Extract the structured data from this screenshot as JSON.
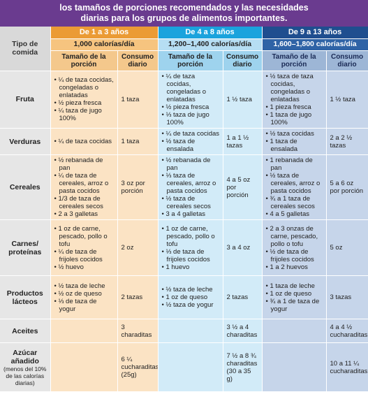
{
  "title": {
    "line1": "los tamaños de porciones recomendados y las necesidades",
    "line2": "diarias para los grupos de alimentos importantes."
  },
  "header": {
    "tipo": "Tipo de comida",
    "groups": [
      {
        "age": "De 1 a 3 años",
        "calories": "1,000 calorías/día",
        "col_portion": "Tamaño de la porción",
        "col_daily": "Consumo diario"
      },
      {
        "age": "De 4 a 8 años",
        "calories": "1,200–1,400 calorías/día",
        "col_portion": "Tamaño de la porción",
        "col_daily": "Consumo diario"
      },
      {
        "age": "De 9 a 13 años",
        "calories": "1,600–1,800 calorías/día",
        "col_portion": "Tamaño de la porción",
        "col_daily": "Consumo diario"
      }
    ]
  },
  "rows": [
    {
      "food": "Fruta",
      "g1": {
        "portion": [
          "¼ de taza cocidas, congeladas o enlatadas",
          "½ pieza fresca",
          "¼ taza de jugo 100%"
        ],
        "daily": "1 taza"
      },
      "g2": {
        "portion": [
          "¼ de taza cocidas, congeladas o enlatadas",
          "½ pieza fresca",
          "⅓ taza de jugo 100%"
        ],
        "daily": "1 ½ taza"
      },
      "g3": {
        "portion": [
          "½ taza de taza cocidas, congeladas o enlatadas",
          "1 pieza fresca",
          "1 taza de jugo 100%"
        ],
        "daily": "1 ½ taza"
      }
    },
    {
      "food": "Verduras",
      "g1": {
        "portion": [
          "¼ de taza cocidas"
        ],
        "daily": "1 taza"
      },
      "g2": {
        "portion": [
          "¼ de taza cocidas",
          "½ taza de ensalada"
        ],
        "daily": "1 a 1 ½ tazas"
      },
      "g3": {
        "portion": [
          "½ taza cocidas",
          "1 taza de ensalada"
        ],
        "daily": "2 a 2 ½ tazas"
      }
    },
    {
      "food": "Cereales",
      "g1": {
        "portion": [
          "½ rebanada de pan",
          "¼ de taza de cereales, arroz o pasta cocidos",
          "1/3 de taza de cereales secos",
          "2 a 3 galletas"
        ],
        "daily": "3 oz por porción"
      },
      "g2": {
        "portion": [
          "½ rebanada de pan",
          "⅓ taza de cereales, arroz o pasta cocidos",
          "½ taza de cereales secos",
          "3 a 4 galletas"
        ],
        "daily": "4 a 5 oz por porción"
      },
      "g3": {
        "portion": [
          "1 rebanada de pan",
          "½ taza de cereales, arroz o pasta cocidos",
          "¾ a 1 taza de cereales secos",
          "4 a 5 galletas"
        ],
        "daily": "5 a 6 oz por porción"
      }
    },
    {
      "food": "Carnes/ proteínas",
      "g1": {
        "portion": [
          "1 oz de carne, pescado, pollo o tofu",
          "¼ de taza de frijoles cocidos",
          "½ huevo"
        ],
        "daily": "2 oz"
      },
      "g2": {
        "portion": [
          "1 oz de carne, pescado, pollo o tofu",
          "⅓ de taza de frijoles cocidos",
          "1 huevo"
        ],
        "daily": "3 a 4 oz"
      },
      "g3": {
        "portion": [
          "2 a 3 onzas de carne, pescado, pollo o tofu",
          "½ de taza de frijoles cocidos",
          "1 a 2 huevos"
        ],
        "daily": "5 oz"
      }
    },
    {
      "food": "Productos lácteos",
      "g1": {
        "portion": [
          "½ taza de leche",
          "½ oz de queso",
          "⅓ de taza de yogur"
        ],
        "daily": "2 tazas"
      },
      "g2": {
        "portion": [
          "½ taza de leche",
          "1 oz de queso",
          "½ taza de yogur"
        ],
        "daily": "2 tazas"
      },
      "g3": {
        "portion": [
          "1 taza de leche",
          "1 oz de queso",
          "¾ a 1 de taza de yogur"
        ],
        "daily": "3 tazas"
      }
    },
    {
      "food": "Aceites",
      "g1": {
        "portion": [],
        "daily": "3 charaditas"
      },
      "g2": {
        "portion": [],
        "daily": "3 ½ a 4 charaditas"
      },
      "g3": {
        "portion": [],
        "daily": "4 a 4 ½ cucharaditas"
      }
    },
    {
      "food": "Azúcar añadido",
      "food_sub": "(menos del 10% de las calorías diarias)",
      "g1": {
        "portion": [],
        "daily": "6 ¼ cucharaditas (25g)"
      },
      "g2": {
        "portion": [],
        "daily": "7 ½ a 8 ¾ charaditas (30 a 35 g)"
      },
      "g3": {
        "portion": [],
        "daily": "10 a 11 ¼ cucharaditas"
      }
    }
  ]
}
